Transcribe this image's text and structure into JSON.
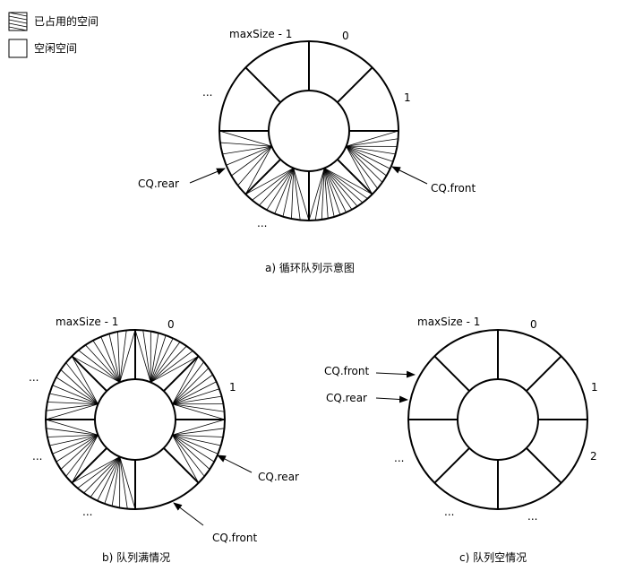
{
  "legend": {
    "used_label": "已占用的空间",
    "free_label": "空闲空间"
  },
  "diagram_a": {
    "caption": "a) 循环队列示意图",
    "label_maxsize": "maxSize - 1",
    "label_0": "0",
    "label_1": "1",
    "ellipsis_left": "...",
    "ellipsis_bottom": "...",
    "rear_label": "CQ.rear",
    "front_label": "CQ.front"
  },
  "diagram_b": {
    "caption": "b) 队列满情况",
    "label_maxsize": "maxSize - 1",
    "label_0": "0",
    "label_1": "1",
    "ellipsis_left_top": "...",
    "ellipsis_left_bottom": "...",
    "ellipsis_bottom": "...",
    "rear_label": "CQ.rear",
    "front_label": "CQ.front"
  },
  "diagram_c": {
    "caption": "c) 队列空情况",
    "label_maxsize": "maxSize - 1",
    "label_0": "0",
    "label_1": "1",
    "label_2": "2",
    "ellipsis_left": "...",
    "ellipsis_bottom_left": "...",
    "ellipsis_bottom_right": "...",
    "front_label": "CQ.front",
    "rear_label": "CQ.rear"
  }
}
